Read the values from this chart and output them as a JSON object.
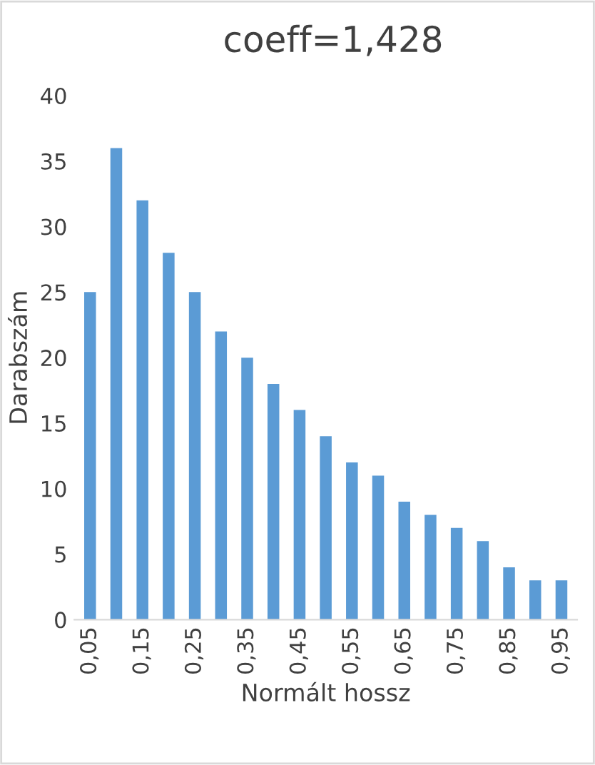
{
  "chart_data": {
    "type": "bar",
    "title": "coeff=1,428",
    "xlabel": "Normált hossz",
    "ylabel": "Darabszám",
    "categories": [
      "0,05",
      null,
      "0,15",
      null,
      "0,25",
      null,
      "0,35",
      null,
      "0,45",
      null,
      "0,55",
      null,
      "0,65",
      null,
      "0,75",
      null,
      "0,85",
      null,
      "0,95"
    ],
    "values": [
      25,
      36,
      32,
      28,
      25,
      22,
      20,
      18,
      16,
      14,
      12,
      11,
      9,
      8,
      7,
      6,
      4,
      3,
      3
    ],
    "color": "#5b9bd5",
    "ylim": [
      0,
      40
    ],
    "yticks": [
      0,
      5,
      10,
      15,
      20,
      25,
      30,
      35,
      40
    ],
    "grid": false
  }
}
